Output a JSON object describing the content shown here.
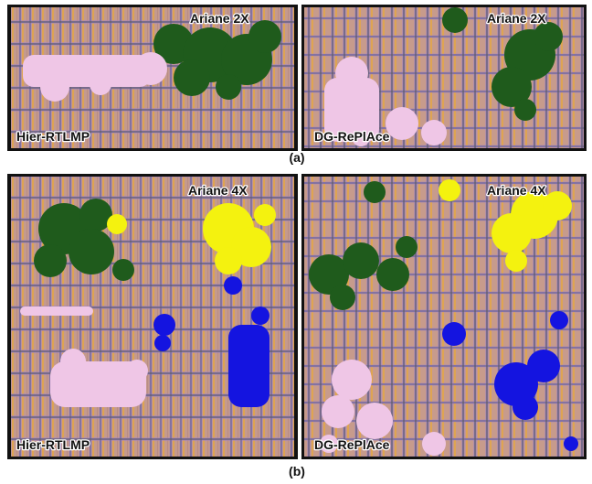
{
  "figure": {
    "rows": [
      {
        "caption": "(a)",
        "panels": [
          {
            "design": "Ariane 2X",
            "method": "Hier-RTLMP"
          },
          {
            "design": "Ariane 2X",
            "method": "DG-RePlAce"
          }
        ]
      },
      {
        "caption": "(b)",
        "panels": [
          {
            "design": "Ariane 4X",
            "method": "Hier-RTLMP"
          },
          {
            "design": "Ariane 4X",
            "method": "DG-RePlAce"
          }
        ]
      }
    ]
  }
}
